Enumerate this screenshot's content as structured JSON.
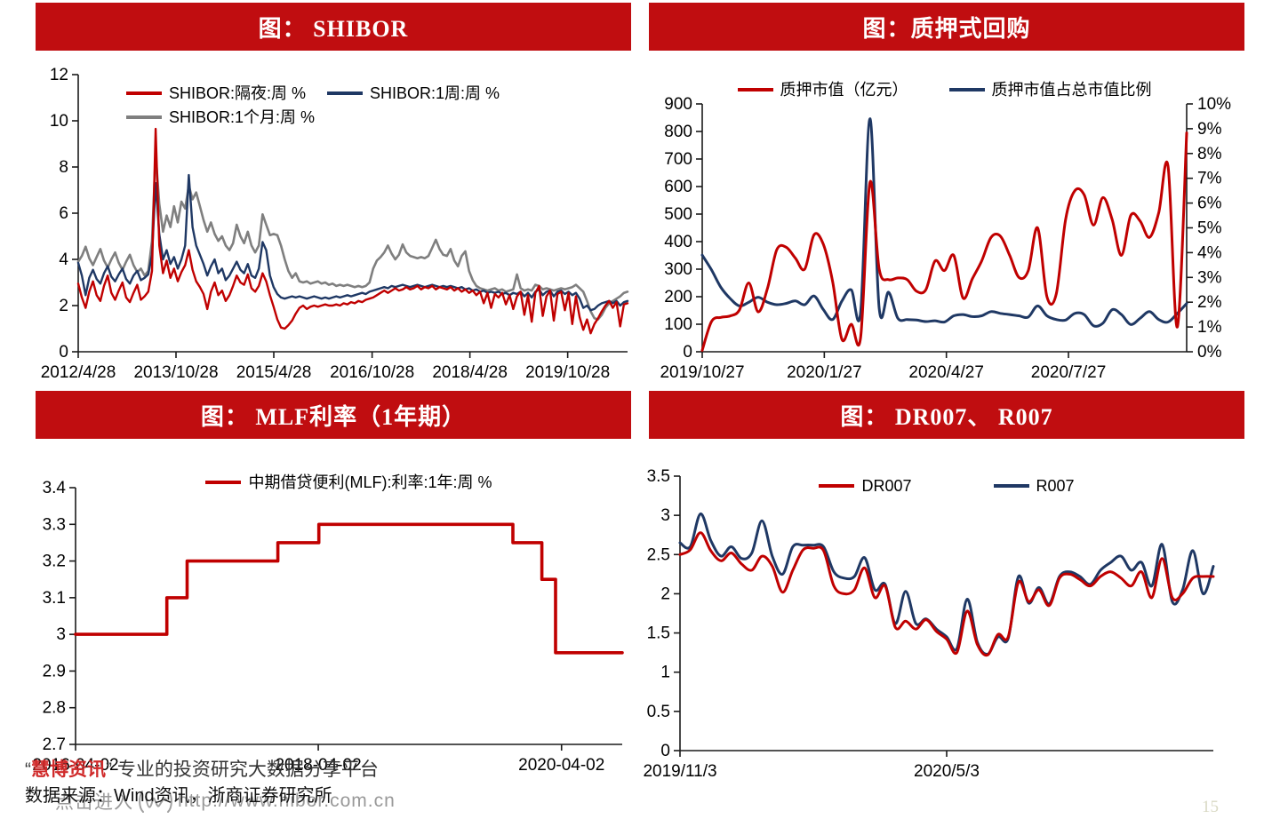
{
  "page_number": "15",
  "colors": {
    "banner_red": "#c00d10",
    "line_red": "#c00000",
    "line_navy": "#1f3864",
    "line_gray": "#7f7f7f",
    "axis": "#1a1a1a",
    "watermark_gray": "#999999",
    "brand_red": "#d02a2a"
  },
  "footer": {
    "wm_quote_open": "“",
    "wm_brand": "慧博资讯",
    "wm_quote_close": "”",
    "wm_tagline": "专业的投资研究大数据分享平台",
    "wm_link_prefix": "点击进入",
    "wm_url": "http://www.hibor.com.cn",
    "data_source": "数据来源：Wind资讯，浙商证券研究所"
  },
  "chart_data": [
    {
      "type": "line",
      "title": "图： SHIBOR",
      "ylim": [
        0,
        12
      ],
      "yticks": [
        {
          "v": 0,
          "label": "0"
        },
        {
          "v": 2,
          "label": "2"
        },
        {
          "v": 4,
          "label": "4"
        },
        {
          "v": 6,
          "label": "6"
        },
        {
          "v": 8,
          "label": "8"
        },
        {
          "v": 10,
          "label": "10"
        },
        {
          "v": 12,
          "label": "12"
        }
      ],
      "xticks": [
        {
          "f": 0,
          "label": "2012/4/28"
        },
        {
          "f": 0.178,
          "label": "2013/10/28"
        },
        {
          "f": 0.356,
          "label": "2015/4/28"
        },
        {
          "f": 0.535,
          "label": "2016/10/28"
        },
        {
          "f": 0.713,
          "label": "2018/4/28"
        },
        {
          "f": 0.891,
          "label": "2019/10/28"
        }
      ],
      "series": [
        {
          "name": "SHIBOR:隔夜:周 %",
          "color": "#c00000",
          "width": 2.4,
          "layer": 2,
          "smooth": false,
          "values": [
            2.95,
            2.35,
            1.9,
            2.6,
            3.05,
            2.45,
            2.2,
            2.85,
            3.3,
            2.55,
            2.25,
            2.65,
            3.0,
            2.35,
            2.15,
            2.55,
            2.9,
            2.25,
            2.4,
            2.6,
            3.5,
            9.65,
            4.6,
            3.4,
            3.95,
            3.2,
            3.6,
            3.05,
            3.45,
            3.75,
            4.4,
            3.55,
            3.05,
            2.8,
            2.5,
            1.85,
            2.6,
            3.0,
            2.45,
            2.65,
            2.2,
            2.45,
            2.85,
            3.3,
            3.0,
            2.9,
            3.35,
            2.75,
            2.6,
            2.85,
            3.4,
            3.05,
            2.45,
            1.95,
            1.4,
            1.05,
            1.0,
            1.15,
            1.35,
            1.65,
            1.9,
            2.0,
            1.85,
            1.95,
            2.0,
            1.95,
            2.0,
            2.05,
            2.0,
            2.0,
            2.05,
            2.0,
            2.1,
            2.05,
            2.15,
            2.1,
            2.2,
            2.15,
            2.25,
            2.3,
            2.35,
            2.45,
            2.55,
            2.65,
            2.55,
            2.65,
            2.75,
            2.65,
            2.7,
            2.8,
            2.7,
            2.75,
            2.85,
            2.7,
            2.8,
            2.75,
            2.85,
            2.7,
            2.8,
            2.75,
            2.7,
            2.8,
            2.65,
            2.75,
            2.6,
            2.7,
            2.55,
            2.65,
            2.45,
            2.6,
            2.1,
            2.55,
            1.9,
            2.5,
            2.35,
            2.55,
            2.05,
            2.45,
            1.85,
            2.4,
            2.6,
            1.6,
            2.45,
            1.3,
            2.55,
            2.85,
            1.55,
            2.4,
            2.65,
            1.35,
            2.5,
            2.6,
            1.8,
            2.55,
            1.2,
            2.4,
            1.5,
            0.95,
            1.4,
            0.8,
            1.2,
            1.45,
            1.75,
            2.0,
            2.2,
            1.9,
            2.15,
            1.1,
            2.05,
            2.1
          ]
        },
        {
          "name": "SHIBOR:1周:周 %",
          "color": "#1f3864",
          "width": 2.4,
          "layer": 1,
          "smooth": false,
          "values": [
            3.85,
            3.3,
            2.45,
            3.2,
            3.55,
            3.15,
            2.95,
            3.4,
            3.7,
            3.25,
            3.05,
            3.35,
            3.6,
            3.15,
            2.95,
            3.3,
            3.5,
            3.1,
            3.2,
            3.35,
            4.2,
            7.3,
            5.1,
            4.0,
            4.4,
            3.8,
            4.1,
            3.6,
            4.0,
            4.6,
            7.65,
            5.4,
            4.6,
            4.2,
            3.8,
            3.3,
            3.7,
            4.0,
            3.4,
            3.6,
            3.1,
            3.3,
            3.6,
            3.9,
            3.55,
            3.4,
            3.8,
            3.3,
            3.2,
            3.6,
            4.75,
            4.4,
            3.3,
            2.8,
            2.5,
            2.35,
            2.3,
            2.35,
            2.4,
            2.35,
            2.4,
            2.35,
            2.3,
            2.35,
            2.4,
            2.35,
            2.3,
            2.35,
            2.3,
            2.35,
            2.4,
            2.35,
            2.4,
            2.45,
            2.4,
            2.45,
            2.5,
            2.55,
            2.5,
            2.6,
            2.65,
            2.7,
            2.75,
            2.8,
            2.75,
            2.85,
            2.8,
            2.85,
            2.9,
            2.85,
            2.8,
            2.85,
            2.9,
            2.85,
            2.8,
            2.85,
            2.9,
            2.85,
            2.8,
            2.85,
            2.8,
            2.85,
            2.8,
            2.75,
            2.8,
            2.7,
            2.75,
            2.65,
            2.7,
            2.6,
            2.65,
            2.55,
            2.6,
            2.55,
            2.6,
            2.5,
            2.55,
            2.45,
            2.55,
            2.5,
            2.6,
            2.4,
            2.55,
            2.35,
            2.6,
            2.7,
            2.45,
            2.6,
            2.65,
            2.4,
            2.6,
            2.65,
            2.5,
            2.6,
            2.45,
            2.55,
            2.3,
            1.9,
            2.0,
            1.8,
            1.85,
            2.0,
            2.1,
            2.15,
            2.2,
            2.1,
            2.2,
            2.0,
            2.15,
            2.2
          ]
        },
        {
          "name": "SHIBOR:1个月:周 %",
          "color": "#7f7f7f",
          "width": 2.6,
          "layer": 0,
          "smooth": false,
          "values": [
            3.9,
            4.15,
            4.55,
            4.05,
            3.75,
            4.1,
            4.45,
            3.95,
            3.65,
            4.0,
            4.3,
            3.85,
            3.55,
            3.9,
            4.2,
            3.75,
            3.45,
            3.6,
            3.3,
            3.5,
            4.8,
            8.6,
            6.4,
            5.2,
            5.9,
            5.4,
            6.3,
            5.6,
            6.5,
            6.2,
            7.2,
            6.6,
            6.9,
            6.3,
            5.7,
            5.2,
            5.6,
            5.1,
            4.8,
            5.0,
            4.6,
            4.4,
            4.7,
            5.5,
            5.0,
            4.7,
            5.2,
            4.6,
            4.3,
            4.6,
            5.95,
            5.5,
            5.05,
            5.1,
            5.05,
            4.6,
            4.0,
            3.5,
            3.2,
            3.4,
            3.05,
            3.0,
            3.05,
            2.95,
            3.0,
            3.05,
            2.95,
            3.0,
            2.9,
            2.95,
            2.85,
            2.9,
            2.85,
            2.9,
            2.85,
            2.8,
            2.85,
            2.8,
            2.85,
            3.0,
            3.6,
            3.95,
            4.1,
            4.3,
            4.6,
            4.25,
            4.0,
            4.2,
            4.65,
            4.3,
            4.15,
            4.1,
            4.05,
            4.1,
            4.05,
            4.15,
            4.5,
            4.85,
            4.45,
            4.2,
            4.15,
            4.45,
            3.95,
            3.7,
            4.15,
            4.35,
            3.5,
            3.1,
            2.85,
            2.75,
            2.7,
            2.65,
            2.7,
            2.75,
            2.65,
            2.7,
            2.6,
            2.65,
            2.7,
            3.35,
            2.75,
            2.65,
            2.7,
            2.65,
            2.9,
            2.85,
            2.7,
            2.75,
            2.7,
            2.65,
            2.7,
            2.75,
            2.7,
            2.75,
            2.8,
            2.9,
            2.75,
            2.6,
            2.2,
            1.75,
            1.45,
            1.4,
            1.6,
            1.9,
            2.1,
            2.2,
            2.3,
            2.4,
            2.55,
            2.6
          ]
        }
      ]
    },
    {
      "type": "line",
      "title": "图：质押式回购",
      "ylim": [
        0,
        900
      ],
      "yticks": [
        {
          "v": 0,
          "label": "0"
        },
        {
          "v": 100,
          "label": "100"
        },
        {
          "v": 200,
          "label": "200"
        },
        {
          "v": 300,
          "label": "300"
        },
        {
          "v": 400,
          "label": "400"
        },
        {
          "v": 500,
          "label": "500"
        },
        {
          "v": 600,
          "label": "600"
        },
        {
          "v": 700,
          "label": "700"
        },
        {
          "v": 800,
          "label": "800"
        },
        {
          "v": 900,
          "label": "900"
        }
      ],
      "y2lim": [
        0,
        10
      ],
      "y2ticks": [
        {
          "v": 0,
          "label": "0%"
        },
        {
          "v": 1,
          "label": "1%"
        },
        {
          "v": 2,
          "label": "2%"
        },
        {
          "v": 3,
          "label": "3%"
        },
        {
          "v": 4,
          "label": "4%"
        },
        {
          "v": 5,
          "label": "5%"
        },
        {
          "v": 6,
          "label": "6%"
        },
        {
          "v": 7,
          "label": "7%"
        },
        {
          "v": 8,
          "label": "8%"
        },
        {
          "v": 9,
          "label": "9%"
        },
        {
          "v": 10,
          "label": "10%"
        }
      ],
      "xticks": [
        {
          "f": 0,
          "label": "2019/10/27"
        },
        {
          "f": 0.252,
          "label": "2020/1/27"
        },
        {
          "f": 0.504,
          "label": "2020/4/27"
        },
        {
          "f": 0.756,
          "label": "2020/7/27"
        }
      ],
      "series": [
        {
          "name": "质押市值（亿元）",
          "color": "#c00000",
          "width": 3,
          "layer": 1,
          "smooth": true,
          "values": [
            5,
            110,
            125,
            130,
            152,
            250,
            145,
            230,
            370,
            380,
            340,
            300,
            425,
            390,
            255,
            45,
            100,
            52,
            615,
            300,
            262,
            268,
            262,
            220,
            225,
            330,
            295,
            350,
            195,
            265,
            330,
            415,
            420,
            350,
            270,
            295,
            450,
            200,
            210,
            480,
            585,
            570,
            460,
            560,
            480,
            350,
            495,
            475,
            415,
            505,
            675,
            90,
            795
          ]
        },
        {
          "name": "质押市值占总市值比例",
          "color": "#1f3864",
          "width": 3,
          "layer": 0,
          "smooth": true,
          "yaxis": "y2",
          "values": [
            3.9,
            3.3,
            2.6,
            2.15,
            1.85,
            2.0,
            2.2,
            2.0,
            1.9,
            1.95,
            2.05,
            1.9,
            2.25,
            1.7,
            1.3,
            2.05,
            2.5,
            1.6,
            9.4,
            1.75,
            2.4,
            1.35,
            1.3,
            1.28,
            1.22,
            1.25,
            1.2,
            1.45,
            1.5,
            1.42,
            1.45,
            1.62,
            1.55,
            1.5,
            1.45,
            1.4,
            1.85,
            1.45,
            1.3,
            1.28,
            1.55,
            1.5,
            1.05,
            1.15,
            1.7,
            1.5,
            1.1,
            1.35,
            1.62,
            1.3,
            1.2,
            1.55,
            1.95
          ]
        }
      ]
    },
    {
      "type": "line",
      "title": "图： MLF利率（1年期）",
      "ylim": [
        2.7,
        3.4
      ],
      "yticks": [
        {
          "v": 2.7,
          "label": "2.7"
        },
        {
          "v": 2.8,
          "label": "2.8"
        },
        {
          "v": 2.9,
          "label": "2.9"
        },
        {
          "v": 3,
          "label": "3"
        },
        {
          "v": 3.1,
          "label": "3.1"
        },
        {
          "v": 3.2,
          "label": "3.2"
        },
        {
          "v": 3.3,
          "label": "3.3"
        },
        {
          "v": 3.4,
          "label": "3.4"
        }
      ],
      "xticks": [
        {
          "f": 0,
          "label": "2016-04-02"
        },
        {
          "f": 0.444,
          "label": "2018-04-02"
        },
        {
          "f": 0.889,
          "label": "2020-04-02"
        }
      ],
      "series": [
        {
          "name": "中期借贷便利(MLF):利率:1年:周 %",
          "color": "#c00000",
          "width": 3.6,
          "layer": 0,
          "smooth": false,
          "points": [
            [
              0,
              3.0
            ],
            [
              0.167,
              3.0
            ],
            [
              0.167,
              3.1
            ],
            [
              0.204,
              3.1
            ],
            [
              0.204,
              3.2
            ],
            [
              0.37,
              3.2
            ],
            [
              0.37,
              3.25
            ],
            [
              0.445,
              3.25
            ],
            [
              0.445,
              3.3
            ],
            [
              0.8,
              3.3
            ],
            [
              0.8,
              3.25
            ],
            [
              0.853,
              3.25
            ],
            [
              0.853,
              3.15
            ],
            [
              0.878,
              3.15
            ],
            [
              0.878,
              2.95
            ],
            [
              1,
              2.95
            ]
          ]
        }
      ]
    },
    {
      "type": "line",
      "title": "图： DR007、 R007",
      "ylim": [
        0,
        3.5
      ],
      "yticks": [
        {
          "v": 0,
          "label": "0"
        },
        {
          "v": 0.5,
          "label": "0.5"
        },
        {
          "v": 1,
          "label": "1"
        },
        {
          "v": 1.5,
          "label": "1.5"
        },
        {
          "v": 2,
          "label": "2"
        },
        {
          "v": 2.5,
          "label": "2.5"
        },
        {
          "v": 3,
          "label": "3"
        },
        {
          "v": 3.5,
          "label": "3.5"
        }
      ],
      "xticks": [
        {
          "f": 0,
          "label": "2019/11/3"
        },
        {
          "f": 0.5,
          "label": "2020/5/3"
        }
      ],
      "series": [
        {
          "name": "DR007",
          "color": "#c00000",
          "width": 3,
          "layer": 1,
          "smooth": true,
          "values": [
            2.5,
            2.56,
            2.78,
            2.55,
            2.42,
            2.52,
            2.38,
            2.3,
            2.48,
            2.35,
            2.02,
            2.3,
            2.56,
            2.58,
            2.55,
            2.1,
            2.0,
            2.05,
            2.33,
            1.95,
            2.1,
            1.57,
            1.65,
            1.55,
            1.67,
            1.52,
            1.42,
            1.25,
            1.78,
            1.35,
            1.22,
            1.48,
            1.45,
            2.15,
            1.9,
            2.05,
            1.85,
            2.2,
            2.25,
            2.18,
            2.1,
            2.22,
            2.28,
            2.2,
            2.1,
            2.28,
            1.95,
            2.45,
            1.95,
            2.0,
            2.2,
            2.22,
            2.22
          ]
        },
        {
          "name": "R007",
          "color": "#1f3864",
          "width": 3,
          "layer": 0,
          "smooth": true,
          "values": [
            2.65,
            2.6,
            3.02,
            2.68,
            2.48,
            2.6,
            2.45,
            2.52,
            2.93,
            2.48,
            2.25,
            2.6,
            2.62,
            2.62,
            2.6,
            2.28,
            2.2,
            2.22,
            2.46,
            2.05,
            2.12,
            1.62,
            2.03,
            1.62,
            1.68,
            1.55,
            1.45,
            1.3,
            1.93,
            1.38,
            1.23,
            1.45,
            1.43,
            2.22,
            1.88,
            2.08,
            1.87,
            2.22,
            2.28,
            2.22,
            2.12,
            2.3,
            2.4,
            2.48,
            2.3,
            2.4,
            2.1,
            2.63,
            1.9,
            2.05,
            2.55,
            2.0,
            2.35
          ]
        }
      ]
    }
  ]
}
